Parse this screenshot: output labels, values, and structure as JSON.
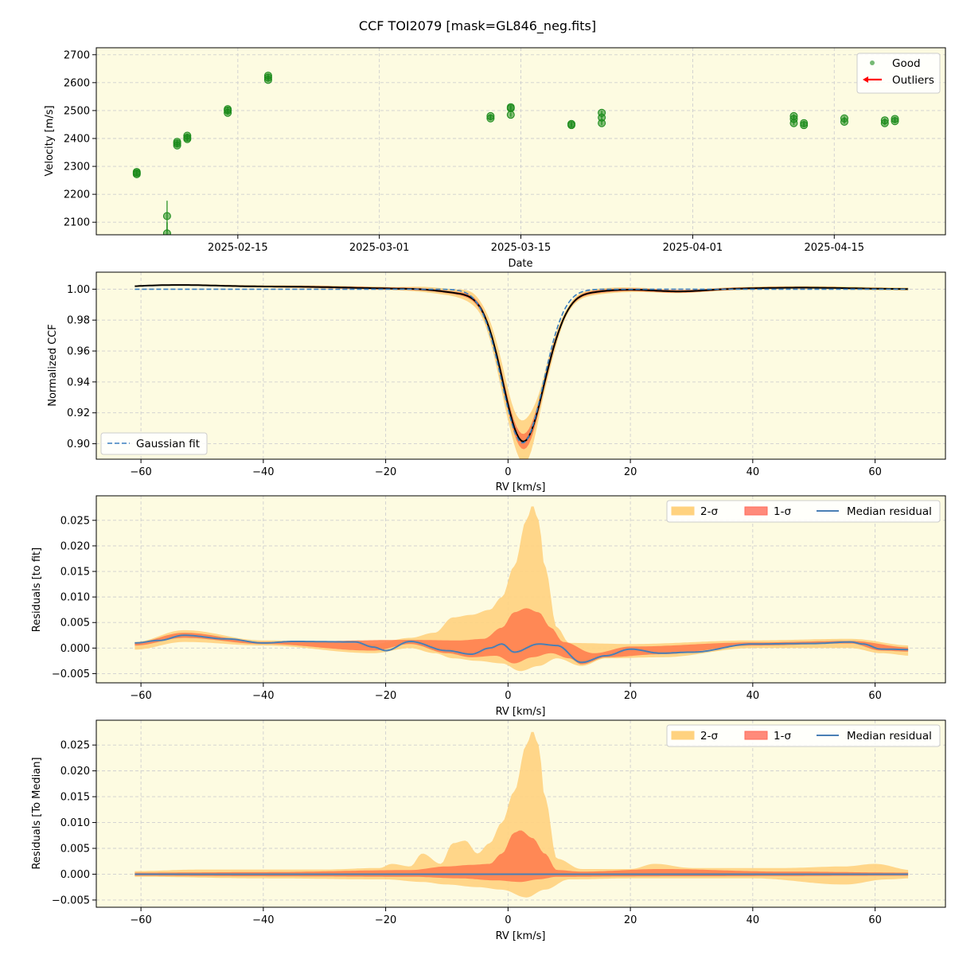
{
  "figure": {
    "title": "CCF TOI2079 [mask=GL846_neg.fits]"
  },
  "colors": {
    "panel_bg": "#fdfbe1",
    "grid": "#cfcfcf",
    "good": "#1a8a1a",
    "outlier": "#ff0000",
    "gauss": "#3a7fc0",
    "ccf": "#000000",
    "band2": "#ffd27f",
    "band1": "#ff7f50",
    "median": "#4a7fb5"
  },
  "chart_data": [
    {
      "type": "scatter",
      "xlabel": "Date",
      "ylabel": "Velocity [m/s]",
      "xlim": [
        "2025-02-01",
        "2025-04-26"
      ],
      "ylim": [
        2055,
        2725
      ],
      "xticks": [
        "2025-02-15",
        "2025-03-01",
        "2025-03-15",
        "2025-04-01",
        "2025-04-15"
      ],
      "yticks": [
        2100,
        2200,
        2300,
        2400,
        2500,
        2600,
        2700
      ],
      "legend": {
        "position": "top-right",
        "entries": [
          "Good",
          "Outliers"
        ]
      },
      "series": [
        {
          "name": "Good",
          "points": [
            [
              "2025-02-05",
              2272,
              6
            ],
            [
              "2025-02-05",
              2280,
              6
            ],
            [
              "2025-02-05",
              2276,
              6
            ],
            [
              "2025-02-08",
              2122,
              55
            ],
            [
              "2025-02-08",
              2060,
              40
            ],
            [
              "2025-02-09",
              2375,
              7
            ],
            [
              "2025-02-09",
              2388,
              7
            ],
            [
              "2025-02-09",
              2382,
              7
            ],
            [
              "2025-02-10",
              2398,
              7
            ],
            [
              "2025-02-10",
              2410,
              7
            ],
            [
              "2025-02-10",
              2403,
              7
            ],
            [
              "2025-02-14",
              2492,
              7
            ],
            [
              "2025-02-14",
              2505,
              7
            ],
            [
              "2025-02-14",
              2500,
              7
            ],
            [
              "2025-02-18",
              2610,
              7
            ],
            [
              "2025-02-18",
              2625,
              7
            ],
            [
              "2025-02-18",
              2618,
              7
            ],
            [
              "2025-03-12",
              2472,
              7
            ],
            [
              "2025-03-12",
              2480,
              7
            ],
            [
              "2025-03-14",
              2485,
              7
            ],
            [
              "2025-03-14",
              2508,
              7
            ],
            [
              "2025-03-14",
              2512,
              7
            ],
            [
              "2025-03-20",
              2448,
              7
            ],
            [
              "2025-03-20",
              2452,
              7
            ],
            [
              "2025-03-23",
              2455,
              7
            ],
            [
              "2025-03-23",
              2475,
              7
            ],
            [
              "2025-03-23",
              2492,
              7
            ],
            [
              "2025-04-11",
              2455,
              7
            ],
            [
              "2025-04-11",
              2470,
              7
            ],
            [
              "2025-04-11",
              2480,
              7
            ],
            [
              "2025-04-12",
              2448,
              7
            ],
            [
              "2025-04-12",
              2455,
              7
            ],
            [
              "2025-04-16",
              2460,
              7
            ],
            [
              "2025-04-16",
              2472,
              7
            ],
            [
              "2025-04-20",
              2455,
              7
            ],
            [
              "2025-04-20",
              2465,
              7
            ],
            [
              "2025-04-21",
              2462,
              7
            ],
            [
              "2025-04-21",
              2470,
              7
            ]
          ]
        }
      ]
    },
    {
      "type": "line",
      "xlabel": "RV [km/s]",
      "ylabel": "Normalized CCF",
      "xlim": [
        -67.3,
        71.5
      ],
      "ylim": [
        0.89,
        1.011
      ],
      "xticks": [
        -60,
        -40,
        -20,
        0,
        20,
        40,
        60
      ],
      "yticks": [
        0.9,
        0.92,
        0.94,
        0.96,
        0.98,
        1.0
      ],
      "legend": {
        "position": "bottom-left",
        "entries": [
          "Gaussian fit"
        ]
      },
      "gauss": {
        "amp": 0.0995,
        "center": 2.4,
        "sigma": 3.4,
        "offset": 1.0
      },
      "ccf_bumps": [
        [
          -55,
          0.0025,
          8
        ],
        [
          -35,
          0.0015,
          10
        ],
        [
          -8,
          -0.0022,
          3
        ],
        [
          8,
          -0.004,
          2
        ],
        [
          12,
          -0.002,
          3.5
        ],
        [
          28,
          -0.0015,
          4
        ],
        [
          48,
          0.001,
          8
        ]
      ],
      "sigma2": [
        [
          -62,
          0.0005
        ],
        [
          -20,
          0.001
        ],
        [
          -10,
          0.002
        ],
        [
          -5,
          0.004
        ],
        [
          0,
          0.01
        ],
        [
          3,
          0.014
        ],
        [
          6,
          0.006
        ],
        [
          10,
          0.002
        ],
        [
          30,
          0.001
        ],
        [
          66,
          0.001
        ]
      ],
      "sigma1": [
        [
          -62,
          0.0003
        ],
        [
          -10,
          0.0008
        ],
        [
          -3,
          0.0018
        ],
        [
          0,
          0.004
        ],
        [
          3,
          0.005
        ],
        [
          6,
          0.003
        ],
        [
          10,
          0.001
        ],
        [
          66,
          0.0004
        ]
      ]
    },
    {
      "type": "area",
      "xlabel": "RV [km/s]",
      "ylabel": "Residuals [to fit]",
      "xlim": [
        -67.3,
        71.5
      ],
      "ylim": [
        -0.0068,
        0.0298
      ],
      "xticks": [
        -60,
        -40,
        -20,
        0,
        20,
        40,
        60
      ],
      "yticks": [
        -0.005,
        0.0,
        0.005,
        0.01,
        0.015,
        0.02,
        0.025
      ],
      "yticklabels": [
        "−0.005",
        "0.000",
        "0.005",
        "0.010",
        "0.015",
        "0.020",
        "0.025"
      ],
      "legend": {
        "position": "top-right",
        "entries": [
          "2-σ",
          "1-σ",
          "Median residual"
        ]
      },
      "median": [
        [
          -61,
          0.001
        ],
        [
          -57,
          0.0015
        ],
        [
          -53,
          0.0025
        ],
        [
          -46,
          0.0018
        ],
        [
          -40,
          0.001
        ],
        [
          -35,
          0.0013
        ],
        [
          -25,
          0.0012
        ],
        [
          -22,
          0.0002
        ],
        [
          -20,
          -0.0005
        ],
        [
          -16,
          0.0013
        ],
        [
          -10,
          -0.0005
        ],
        [
          -6,
          -0.0012
        ],
        [
          -3,
          0.0
        ],
        [
          -1,
          0.0008
        ],
        [
          1,
          -0.0008
        ],
        [
          5,
          0.0008
        ],
        [
          8,
          0.0005
        ],
        [
          12,
          -0.0028
        ],
        [
          16,
          -0.0015
        ],
        [
          20,
          -0.0002
        ],
        [
          25,
          -0.001
        ],
        [
          30,
          -0.0008
        ],
        [
          40,
          0.0008
        ],
        [
          50,
          0.0009
        ],
        [
          56,
          0.0012
        ],
        [
          58,
          0.0008
        ],
        [
          61,
          -0.0002
        ],
        [
          66,
          -0.0003
        ]
      ],
      "up2": [
        [
          -61,
          0.0012
        ],
        [
          -53,
          0.0035
        ],
        [
          -40,
          0.0015
        ],
        [
          -22,
          0.0008
        ],
        [
          -16,
          0.002
        ],
        [
          -12,
          0.003
        ],
        [
          -9,
          0.006
        ],
        [
          -6,
          0.0065
        ],
        [
          -3,
          0.0075
        ],
        [
          -1,
          0.01
        ],
        [
          1,
          0.016
        ],
        [
          3,
          0.025
        ],
        [
          4,
          0.028
        ],
        [
          5,
          0.025
        ],
        [
          6,
          0.016
        ],
        [
          8,
          0.004
        ],
        [
          10,
          0.001
        ],
        [
          20,
          0.0008
        ],
        [
          40,
          0.0015
        ],
        [
          56,
          0.0018
        ],
        [
          66,
          0.0005
        ]
      ],
      "lo2": [
        [
          -61,
          -0.0003
        ],
        [
          -53,
          0.0012
        ],
        [
          -40,
          0.0005
        ],
        [
          -22,
          -0.001
        ],
        [
          -16,
          0.0
        ],
        [
          -12,
          -0.001
        ],
        [
          -9,
          -0.002
        ],
        [
          -5,
          -0.0025
        ],
        [
          -1,
          -0.003
        ],
        [
          2,
          -0.0045
        ],
        [
          5,
          -0.0035
        ],
        [
          8,
          -0.002
        ],
        [
          12,
          -0.0035
        ],
        [
          16,
          -0.002
        ],
        [
          25,
          -0.0018
        ],
        [
          40,
          0.0
        ],
        [
          56,
          0.0
        ],
        [
          61,
          -0.001
        ],
        [
          66,
          -0.0015
        ]
      ],
      "up1": [
        [
          -61,
          0.0011
        ],
        [
          -53,
          0.003
        ],
        [
          -40,
          0.0012
        ],
        [
          -16,
          0.0016
        ],
        [
          -8,
          0.0015
        ],
        [
          -4,
          0.0018
        ],
        [
          -1,
          0.004
        ],
        [
          1,
          0.007
        ],
        [
          3,
          0.0078
        ],
        [
          5,
          0.007
        ],
        [
          7,
          0.004
        ],
        [
          9,
          0.0012
        ],
        [
          14,
          -0.001
        ],
        [
          20,
          0.0003
        ],
        [
          40,
          0.0011
        ],
        [
          56,
          0.0014
        ],
        [
          66,
          0.0001
        ]
      ],
      "lo1": [
        [
          -61,
          0.0005
        ],
        [
          -53,
          0.002
        ],
        [
          -40,
          0.0008
        ],
        [
          -22,
          -0.0005
        ],
        [
          -16,
          0.0008
        ],
        [
          -10,
          -0.001
        ],
        [
          -6,
          -0.0018
        ],
        [
          -2,
          -0.0015
        ],
        [
          1,
          -0.003
        ],
        [
          4,
          -0.0018
        ],
        [
          7,
          -0.001
        ],
        [
          10,
          -0.002
        ],
        [
          12,
          -0.0032
        ],
        [
          16,
          -0.0018
        ],
        [
          25,
          -0.0012
        ],
        [
          40,
          0.0005
        ],
        [
          56,
          0.0009
        ],
        [
          61,
          -0.0005
        ],
        [
          66,
          -0.0007
        ]
      ]
    },
    {
      "type": "area",
      "xlabel": "RV [km/s]",
      "ylabel": "Residuals [To Median]",
      "xlim": [
        -67.3,
        71.5
      ],
      "ylim": [
        -0.0064,
        0.0298
      ],
      "xticks": [
        -60,
        -40,
        -20,
        0,
        20,
        40,
        60
      ],
      "yticks": [
        -0.005,
        0.0,
        0.005,
        0.01,
        0.015,
        0.02,
        0.025
      ],
      "yticklabels": [
        "−0.005",
        "0.000",
        "0.005",
        "0.010",
        "0.015",
        "0.020",
        "0.025"
      ],
      "legend": {
        "position": "top-right",
        "entries": [
          "2-σ",
          "1-σ",
          "Median residual"
        ]
      },
      "median": [
        [
          -61,
          0.0
        ],
        [
          66,
          0.0
        ]
      ],
      "up2": [
        [
          -61,
          0.0006
        ],
        [
          -50,
          0.0009
        ],
        [
          -30,
          0.0009
        ],
        [
          -21,
          0.0012
        ],
        [
          -19,
          0.002
        ],
        [
          -16,
          0.0015
        ],
        [
          -14,
          0.004
        ],
        [
          -11,
          0.002
        ],
        [
          -9,
          0.006
        ],
        [
          -7,
          0.0065
        ],
        [
          -5,
          0.004
        ],
        [
          -3,
          0.006
        ],
        [
          -1,
          0.01
        ],
        [
          1,
          0.016
        ],
        [
          3,
          0.025
        ],
        [
          4,
          0.0278
        ],
        [
          5,
          0.025
        ],
        [
          6,
          0.015
        ],
        [
          8,
          0.003
        ],
        [
          12,
          0.001
        ],
        [
          20,
          0.001
        ],
        [
          24,
          0.002
        ],
        [
          30,
          0.0012
        ],
        [
          45,
          0.0012
        ],
        [
          55,
          0.0015
        ],
        [
          60,
          0.002
        ],
        [
          66,
          0.0008
        ]
      ],
      "lo2": [
        [
          -61,
          -0.0005
        ],
        [
          -40,
          -0.0008
        ],
        [
          -20,
          -0.001
        ],
        [
          -14,
          -0.0015
        ],
        [
          -10,
          -0.002
        ],
        [
          -5,
          -0.0025
        ],
        [
          -1,
          -0.003
        ],
        [
          3,
          -0.0045
        ],
        [
          6,
          -0.003
        ],
        [
          10,
          -0.001
        ],
        [
          20,
          -0.0008
        ],
        [
          40,
          -0.0008
        ],
        [
          55,
          -0.002
        ],
        [
          62,
          -0.001
        ],
        [
          66,
          -0.0008
        ]
      ],
      "up1": [
        [
          -61,
          0.0003
        ],
        [
          -40,
          0.0004
        ],
        [
          -16,
          0.0008
        ],
        [
          -10,
          0.0015
        ],
        [
          -6,
          0.0018
        ],
        [
          -3,
          0.002
        ],
        [
          -1,
          0.004
        ],
        [
          1,
          0.008
        ],
        [
          2,
          0.0085
        ],
        [
          4,
          0.007
        ],
        [
          6,
          0.004
        ],
        [
          8,
          0.0008
        ],
        [
          12,
          0.0005
        ],
        [
          25,
          0.001
        ],
        [
          45,
          0.0005
        ],
        [
          66,
          0.0003
        ]
      ],
      "lo1": [
        [
          -61,
          -0.0003
        ],
        [
          -40,
          -0.0004
        ],
        [
          -16,
          -0.0005
        ],
        [
          -8,
          -0.0008
        ],
        [
          -2,
          -0.0012
        ],
        [
          2,
          -0.0015
        ],
        [
          5,
          -0.001
        ],
        [
          8,
          -0.0005
        ],
        [
          25,
          -0.0004
        ],
        [
          66,
          -0.0003
        ]
      ]
    }
  ]
}
